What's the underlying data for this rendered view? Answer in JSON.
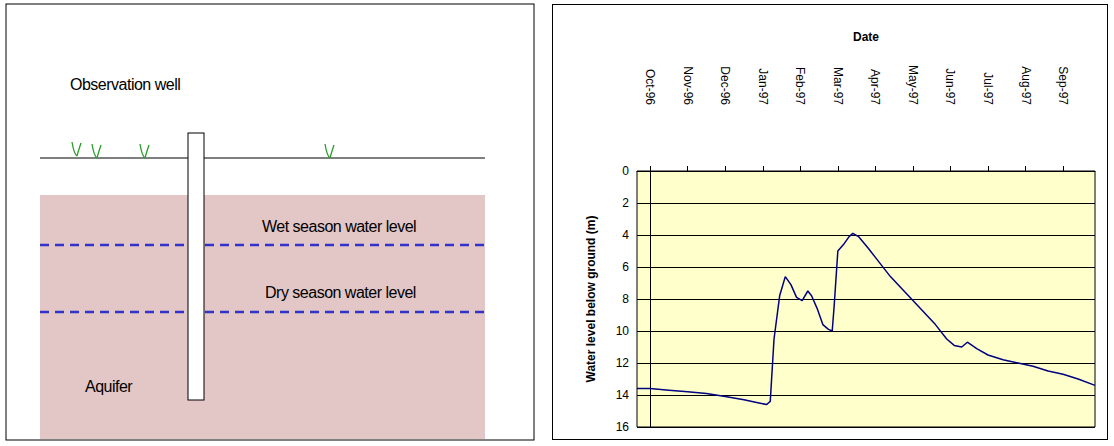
{
  "diagram": {
    "labels": {
      "well": "Observation well",
      "wet": "Wet season water level",
      "dry": "Dry season water level",
      "aquifer": "Aquifer"
    }
  },
  "chart_data": {
    "type": "line",
    "x_label": "Date",
    "y_label": "Water level below ground (m)",
    "x": [
      -0.35,
      0,
      0.5,
      1,
      1.5,
      2,
      2.5,
      2.9,
      3.1,
      3.15,
      3.2,
      3.3,
      3.45,
      3.6,
      3.75,
      3.9,
      4.05,
      4.2,
      4.3,
      4.45,
      4.6,
      4.75,
      4.85,
      4.9,
      5.0,
      5.15,
      5.3,
      5.4,
      5.55,
      5.8,
      6.0,
      6.4,
      6.8,
      7.2,
      7.6,
      7.9,
      8.1,
      8.3,
      8.45,
      8.7,
      9.0,
      9.4,
      9.8,
      10.2,
      10.6,
      11.0,
      11.4,
      11.85
    ],
    "values": [
      13.6,
      13.6,
      13.7,
      13.8,
      13.9,
      14.1,
      14.3,
      14.5,
      14.6,
      14.5,
      14.4,
      10.5,
      7.8,
      6.6,
      7.1,
      7.9,
      8.1,
      7.5,
      7.8,
      8.6,
      9.6,
      9.9,
      10.0,
      8.5,
      5.0,
      4.6,
      4.1,
      3.9,
      4.1,
      4.8,
      5.4,
      6.6,
      7.6,
      8.6,
      9.6,
      10.5,
      10.9,
      11.0,
      10.7,
      11.1,
      11.5,
      11.8,
      12.0,
      12.2,
      12.5,
      12.7,
      13.0,
      13.4
    ],
    "color": "#000080",
    "xlim": [
      -0.35,
      11.85
    ],
    "xticks": [
      {
        "value": 0,
        "label": "Oct-96"
      },
      {
        "value": 1,
        "label": "Nov-96"
      },
      {
        "value": 2,
        "label": "Dec-96"
      },
      {
        "value": 3,
        "label": "Jan-97"
      },
      {
        "value": 4,
        "label": "Feb-97"
      },
      {
        "value": 5,
        "label": "Mar-97"
      },
      {
        "value": 6,
        "label": "Apr-97"
      },
      {
        "value": 7,
        "label": "May-97"
      },
      {
        "value": 8,
        "label": "Jun-97"
      },
      {
        "value": 9,
        "label": "Jul-97"
      },
      {
        "value": 10,
        "label": "Aug-97"
      },
      {
        "value": 11,
        "label": "Sep-97"
      }
    ],
    "ylim": [
      16,
      0
    ],
    "yticks": [
      0,
      2,
      4,
      6,
      8,
      10,
      12,
      14,
      16
    ],
    "grid": true
  }
}
